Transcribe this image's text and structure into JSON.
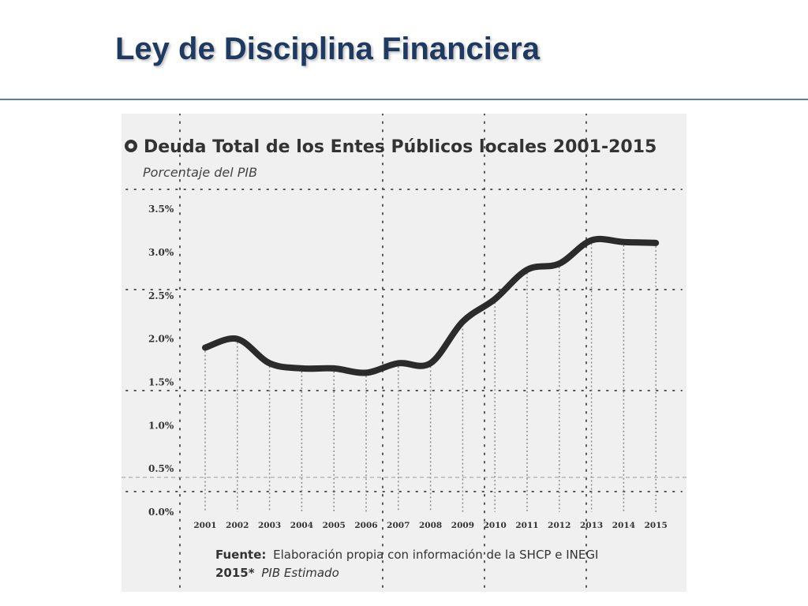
{
  "slide": {
    "title": "Ley de Disciplina Financiera"
  },
  "colors": {
    "title": "#1f3a60",
    "rule": "#5b7fa3",
    "panel": "#f0f0f0",
    "line": "#2b2b2b",
    "grid": "#555555"
  },
  "chart_data": {
    "type": "line",
    "title": "Deuda Total de los Entes Públicos locales 2001-2015",
    "subtitle": "Porcentaje del PIB",
    "title_icon": "bullet-circle-icon",
    "x": [
      "2001",
      "2002",
      "2003",
      "2004",
      "2005",
      "2006",
      "2007",
      "2008",
      "2009",
      "2010",
      "2011",
      "2012",
      "2013",
      "2014",
      "2015"
    ],
    "y_ticks": [
      "0.0%",
      "0.5%",
      "1.0%",
      "1.5%",
      "2.0%",
      "2.5%",
      "3.0%",
      "3.5%"
    ],
    "ylim": [
      0,
      3.5
    ],
    "series": [
      {
        "values": [
          1.9,
          2.0,
          1.72,
          1.66,
          1.66,
          1.61,
          1.72,
          1.72,
          2.2,
          2.46,
          2.8,
          2.87,
          3.14,
          3.12,
          3.11
        ]
      }
    ],
    "grid": true,
    "source_label": "Fuente:",
    "source_text": "Elaboración propia con información de la SHCP e INEGI",
    "footnote_label": "2015*",
    "footnote_text": "PIB Estimado"
  }
}
